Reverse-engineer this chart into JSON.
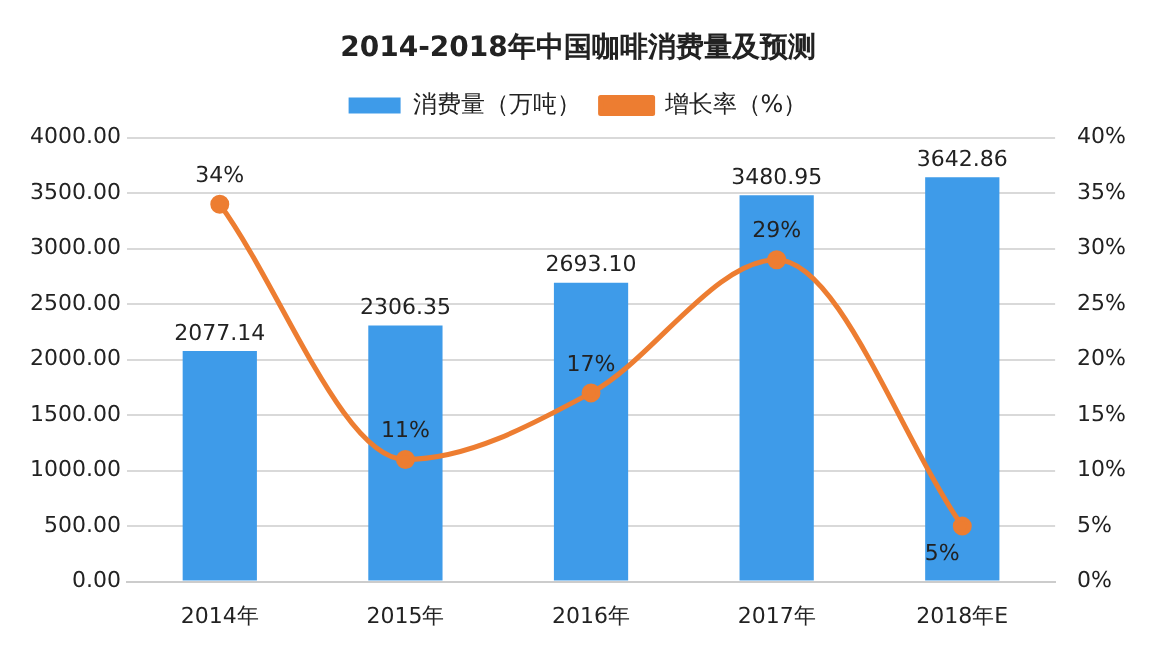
{
  "chart_data": {
    "type": "bar",
    "title": "2014-2018年中国咖啡消费量及预测",
    "categories": [
      "2014年",
      "2015年",
      "2016年",
      "2017年",
      "2018年E"
    ],
    "series": [
      {
        "name": "消费量（万吨）",
        "color": "#3e9be9",
        "values": [
          2077.14,
          2306.35,
          2693.1,
          3480.95,
          3642.86
        ],
        "value_labels": [
          "2077.14",
          "2306.35",
          "2693.10",
          "3480.95",
          "3642.86"
        ]
      },
      {
        "name": "增长率（%）",
        "type": "line",
        "axis": "y2",
        "color": "#ed7d31",
        "values": [
          34,
          11,
          17,
          29,
          5
        ],
        "value_labels": [
          "34%",
          "11%",
          "17%",
          "29%",
          "5%"
        ]
      }
    ],
    "ylim": [
      0,
      4000
    ],
    "yticks": [
      {
        "value": 0,
        "label": "0.00"
      },
      {
        "value": 500,
        "label": "500.00"
      },
      {
        "value": 1000,
        "label": "1000.00"
      },
      {
        "value": 1500,
        "label": "1500.00"
      },
      {
        "value": 2000,
        "label": "2000.00"
      },
      {
        "value": 2500,
        "label": "2500.00"
      },
      {
        "value": 3000,
        "label": "3000.00"
      },
      {
        "value": 3500,
        "label": "3500.00"
      },
      {
        "value": 4000,
        "label": "4000.00"
      }
    ],
    "y2lim": [
      0,
      40
    ],
    "y2ticks": [
      {
        "value": 0,
        "label": "0%"
      },
      {
        "value": 5,
        "label": "5%"
      },
      {
        "value": 10,
        "label": "10%"
      },
      {
        "value": 15,
        "label": "15%"
      },
      {
        "value": 20,
        "label": "20%"
      },
      {
        "value": 25,
        "label": "25%"
      },
      {
        "value": 30,
        "label": "30%"
      },
      {
        "value": 35,
        "label": "35%"
      },
      {
        "value": 40,
        "label": "40%"
      }
    ],
    "grid": "y",
    "legend": "top",
    "marker": "circle",
    "line_style": "solid"
  }
}
